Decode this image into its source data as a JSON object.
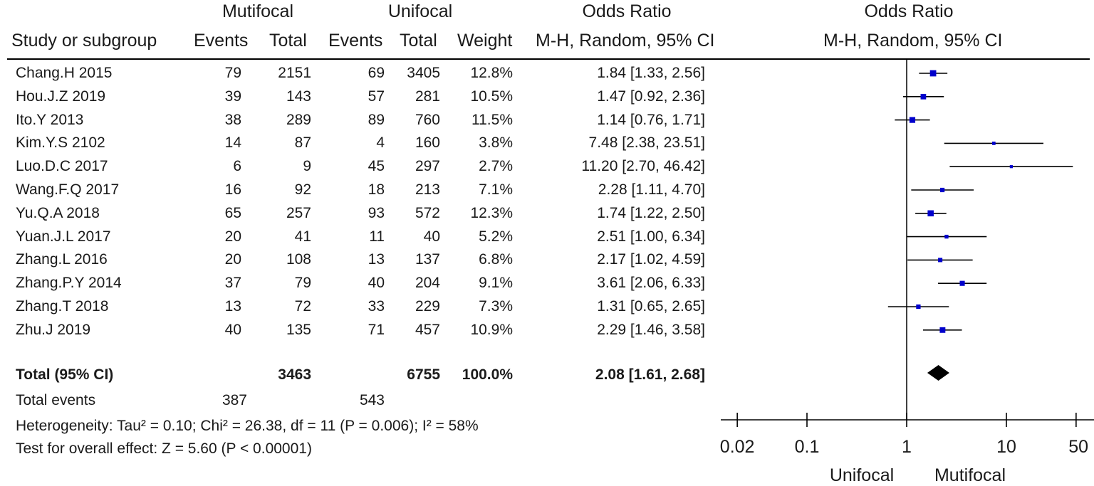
{
  "header": {
    "group1": "Mutifocal",
    "group2": "Unifocal",
    "or_title_left": "Odds Ratio",
    "or_title_right": "Odds Ratio",
    "study_col": "Study or subgroup",
    "events1": "Events",
    "total1": "Total",
    "events2": "Events",
    "total2": "Total",
    "weight": "Weight",
    "method_left": "M-H, Random, 95% CI",
    "method_right": "M-H, Random, 95% CI"
  },
  "total_row": {
    "label": "Total (95% CI)",
    "total1": "3463",
    "total2": "6755",
    "weight": "100.0%",
    "ci": "2.08 [1.61, 2.68]"
  },
  "total_events": {
    "label": "Total events",
    "events1": "387",
    "events2": "543"
  },
  "heterogeneity": "Heterogeneity: Tau² = 0.10; Chi² = 26.38, df = 11 (P = 0.006); I² = 58%",
  "overall_effect": "Test for overall effect: Z = 5.60 (P < 0.00001)",
  "axis": {
    "ticks": [
      "0.02",
      "0.1",
      "1",
      "10",
      "50"
    ],
    "tick_values": [
      0.02,
      0.1,
      1,
      10,
      50
    ],
    "label_left": "Unifocal",
    "label_right": "Mutifocal"
  },
  "colors": {
    "square": "#0000cc",
    "line": "#000000",
    "diamond": "#000000"
  },
  "chart_data": {
    "type": "forest",
    "scale": "log",
    "xlim": [
      0.02,
      50
    ],
    "reference_line": 1,
    "studies": [
      {
        "name": "Chang.H 2015",
        "events1": "79",
        "total1": "2151",
        "events2": "69",
        "total2": "3405",
        "weight": "12.8%",
        "ci_text": "1.84 [1.33, 2.56]",
        "or": 1.84,
        "lower": 1.33,
        "upper": 2.56
      },
      {
        "name": "Hou.J.Z 2019",
        "events1": "39",
        "total1": "143",
        "events2": "57",
        "total2": "281",
        "weight": "10.5%",
        "ci_text": "1.47 [0.92, 2.36]",
        "or": 1.47,
        "lower": 0.92,
        "upper": 2.36
      },
      {
        "name": "Ito.Y 2013",
        "events1": "38",
        "total1": "289",
        "events2": "89",
        "total2": "760",
        "weight": "11.5%",
        "ci_text": "1.14 [0.76, 1.71]",
        "or": 1.14,
        "lower": 0.76,
        "upper": 1.71
      },
      {
        "name": "Kim.Y.S 2102",
        "events1": "14",
        "total1": "87",
        "events2": "4",
        "total2": "160",
        "weight": "3.8%",
        "ci_text": "7.48 [2.38, 23.51]",
        "or": 7.48,
        "lower": 2.38,
        "upper": 23.51
      },
      {
        "name": "Luo.D.C 2017",
        "events1": "6",
        "total1": "9",
        "events2": "45",
        "total2": "297",
        "weight": "2.7%",
        "ci_text": "11.20 [2.70, 46.42]",
        "or": 11.2,
        "lower": 2.7,
        "upper": 46.42
      },
      {
        "name": "Wang.F.Q 2017",
        "events1": "16",
        "total1": "92",
        "events2": "18",
        "total2": "213",
        "weight": "7.1%",
        "ci_text": "2.28 [1.11, 4.70]",
        "or": 2.28,
        "lower": 1.11,
        "upper": 4.7
      },
      {
        "name": "Yu.Q.A 2018",
        "events1": "65",
        "total1": "257",
        "events2": "93",
        "total2": "572",
        "weight": "12.3%",
        "ci_text": "1.74 [1.22, 2.50]",
        "or": 1.74,
        "lower": 1.22,
        "upper": 2.5
      },
      {
        "name": "Yuan.J.L 2017",
        "events1": "20",
        "total1": "41",
        "events2": "11",
        "total2": "40",
        "weight": "5.2%",
        "ci_text": "2.51 [1.00, 6.34]",
        "or": 2.51,
        "lower": 1.0,
        "upper": 6.34
      },
      {
        "name": "Zhang.L 2016",
        "events1": "20",
        "total1": "108",
        "events2": "13",
        "total2": "137",
        "weight": "6.8%",
        "ci_text": "2.17 [1.02, 4.59]",
        "or": 2.17,
        "lower": 1.02,
        "upper": 4.59
      },
      {
        "name": "Zhang.P.Y 2014",
        "events1": "37",
        "total1": "79",
        "events2": "40",
        "total2": "204",
        "weight": "9.1%",
        "ci_text": "3.61 [2.06, 6.33]",
        "or": 3.61,
        "lower": 2.06,
        "upper": 6.33
      },
      {
        "name": "Zhang.T 2018",
        "events1": "13",
        "total1": "72",
        "events2": "33",
        "total2": "229",
        "weight": "7.3%",
        "ci_text": "1.31 [0.65, 2.65]",
        "or": 1.31,
        "lower": 0.65,
        "upper": 2.65
      },
      {
        "name": "Zhu.J 2019",
        "events1": "40",
        "total1": "135",
        "events2": "71",
        "total2": "457",
        "weight": "10.9%",
        "ci_text": "2.29 [1.46, 3.58]",
        "or": 2.29,
        "lower": 1.46,
        "upper": 3.58
      }
    ],
    "pooled": {
      "or": 2.08,
      "lower": 1.61,
      "upper": 2.68
    }
  }
}
